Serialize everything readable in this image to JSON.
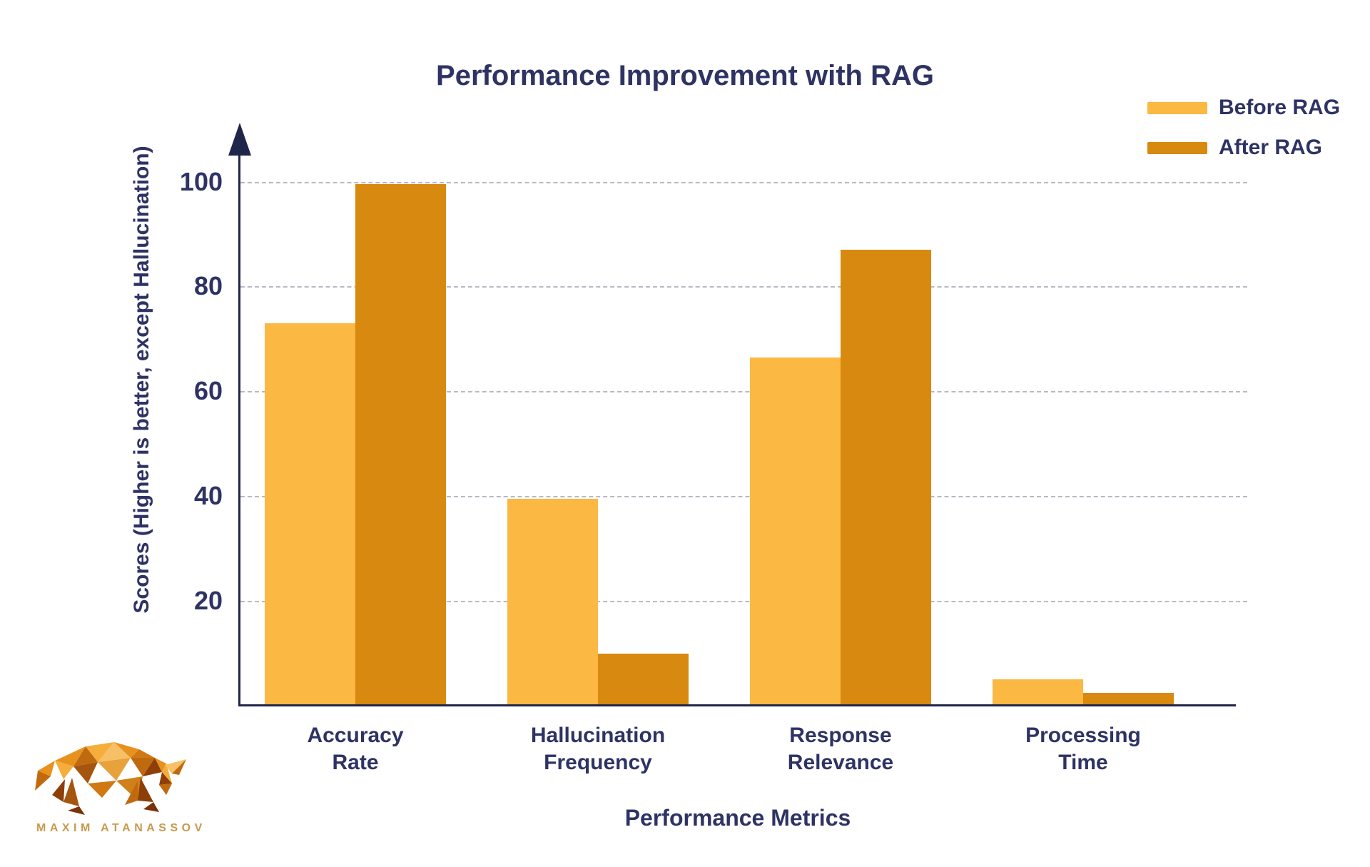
{
  "title": "Performance Improvement with RAG",
  "legend": [
    {
      "label": "Before RAG",
      "color": "#FBB843"
    },
    {
      "label": "After RAG",
      "color": "#D8890F"
    }
  ],
  "x_axis_title": "Performance Metrics",
  "y_axis_label": "Scores (Higher is better, except Hallucination)",
  "logo": {
    "brand": "MAXIM ATANASSOV"
  },
  "chart_data": {
    "type": "bar",
    "title": "Performance Improvement with RAG",
    "xlabel": "Performance Metrics",
    "ylabel": "Scores (Higher is better, except Hallucination)",
    "categories": [
      "Accuracy Rate",
      "Hallucination Frequency",
      "Response Relevance",
      "Processing Time"
    ],
    "category_lines": [
      [
        "Accuracy",
        "Rate"
      ],
      [
        "Hallucination",
        "Frequency"
      ],
      [
        "Response",
        "Relevance"
      ],
      [
        "Processing",
        "Time"
      ]
    ],
    "series": [
      {
        "name": "Before RAG",
        "color": "#FBB843",
        "values": [
          73,
          39.5,
          66.5,
          5
        ]
      },
      {
        "name": "After RAG",
        "color": "#D8890F",
        "values": [
          99.5,
          10,
          87,
          2.5
        ]
      }
    ],
    "y_ticks": [
      20,
      40,
      60,
      80,
      100
    ],
    "ylim": [
      0,
      107
    ],
    "grid": "horizontal-dashed",
    "legend_position": "top-right"
  },
  "colors": {
    "text": "#2E3364",
    "axis": "#20264A",
    "gridline": "#B6BAC4",
    "background": "#FFFFFF",
    "logo_text": "#C89A4E"
  }
}
